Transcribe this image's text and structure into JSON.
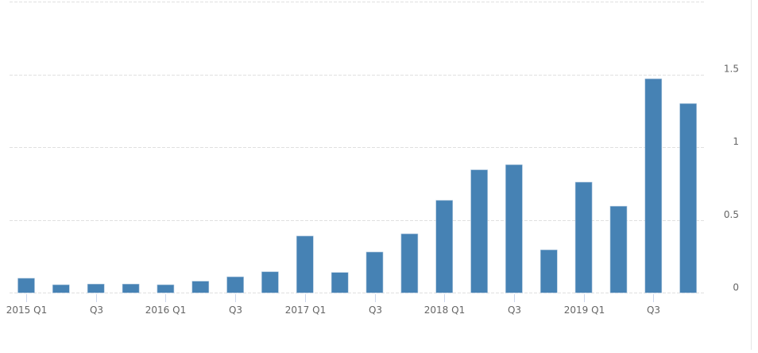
{
  "chart_data": {
    "type": "bar",
    "title": "",
    "xlabel": "",
    "ylabel": "",
    "ylim": [
      0,
      2
    ],
    "grid": true,
    "legend": null,
    "y_axis_position": "right",
    "y_ticks": [
      "0",
      "0.5",
      "1",
      "1.5"
    ],
    "x_tick_labels": [
      "2015 Q1",
      "Q3",
      "2016 Q1",
      "Q3",
      "2017 Q1",
      "Q3",
      "2018 Q1",
      "Q3",
      "2019 Q1",
      "Q3"
    ],
    "categories": [
      "2015 Q1",
      "2015 Q2",
      "2015 Q3",
      "2015 Q4",
      "2016 Q1",
      "2016 Q2",
      "2016 Q3",
      "2016 Q4",
      "2017 Q1",
      "2017 Q2",
      "2017 Q3",
      "2017 Q4",
      "2018 Q1",
      "2018 Q2",
      "2018 Q3",
      "2018 Q4",
      "2019 Q1",
      "2019 Q2",
      "2019 Q3",
      "2019 Q4"
    ],
    "values": [
      0.1,
      0.055,
      0.06,
      0.06,
      0.055,
      0.08,
      0.11,
      0.145,
      0.39,
      0.14,
      0.28,
      0.405,
      0.635,
      0.845,
      0.88,
      0.295,
      0.76,
      0.595,
      1.47,
      1.3
    ],
    "bar_color": "#4682b4"
  },
  "colors": {
    "bar": "#4682b4",
    "bar_border": "#a9c4dd",
    "grid": "#e0e0e0",
    "tick": "#ccd6eb",
    "label": "#666666",
    "border": "#e6e6e6"
  }
}
